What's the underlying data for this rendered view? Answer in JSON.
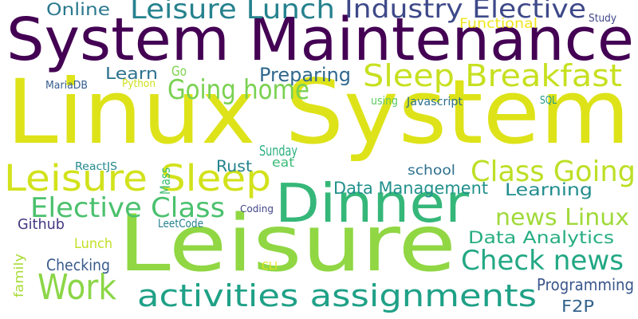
{
  "colors": {
    "background": "#ffffff",
    "purple": "#440154",
    "indigo": "#482878",
    "slate_blue": "#3e4989",
    "steel_blue": "#31688e",
    "teal": "#26828e",
    "sea_green": "#1f9e89",
    "green": "#35b779",
    "light_green": "#6ece58",
    "lime": "#b5de2b",
    "yellow": "#dde318"
  },
  "words": [
    {
      "id": "word-linux-system",
      "text": "Linux System",
      "color": "#dde318"
    },
    {
      "id": "word-system-maintenance",
      "text": "System Maintenance",
      "color": "#440154"
    },
    {
      "id": "word-leisure-large",
      "text": "Leisure",
      "color": "#90d743"
    },
    {
      "id": "word-dinner",
      "text": "Dinner",
      "color": "#35b779"
    },
    {
      "id": "word-leisure-lunch",
      "text": "Leisure Lunch",
      "color": "#26828e"
    },
    {
      "id": "word-industry-elective",
      "text": "Industry Elective",
      "color": "#3e4989"
    },
    {
      "id": "word-sleep-breakfast",
      "text": "Sleep Breakfast",
      "color": "#c7e020"
    },
    {
      "id": "word-leisure-sleep",
      "text": "Leisure Sleep",
      "color": "#d2e21b"
    },
    {
      "id": "word-activities-assignments",
      "text": "activities assignments",
      "color": "#1fa187"
    },
    {
      "id": "word-class-going",
      "text": "Class Going",
      "color": "#bddf26"
    },
    {
      "id": "word-elective-class",
      "text": "Elective Class",
      "color": "#4ac16d"
    },
    {
      "id": "word-going-home",
      "text": "Going home",
      "color": "#7ad151"
    },
    {
      "id": "word-work",
      "text": "Work",
      "color": "#8bd646"
    },
    {
      "id": "word-check-news",
      "text": "Check news",
      "color": "#22a884"
    },
    {
      "id": "word-news-linux",
      "text": "news Linux",
      "color": "#a0da39"
    },
    {
      "id": "word-preparing",
      "text": "Preparing",
      "color": "#31688e"
    },
    {
      "id": "word-online",
      "text": "Online",
      "color": "#2a788e"
    },
    {
      "id": "word-learn",
      "text": "Learn",
      "color": "#2c728e"
    },
    {
      "id": "word-data-management",
      "text": "Data Management",
      "color": "#21918c"
    },
    {
      "id": "word-learning",
      "text": "Learning",
      "color": "#228c8d"
    },
    {
      "id": "word-data-analytics",
      "text": "Data Analytics",
      "color": "#26ad81"
    },
    {
      "id": "word-programming",
      "text": "Programming",
      "color": "#39558c"
    },
    {
      "id": "word-f2p",
      "text": "F2P",
      "color": "#33638d"
    },
    {
      "id": "word-rust",
      "text": "Rust",
      "color": "#25848e"
    },
    {
      "id": "word-sunday",
      "text": "Sunday",
      "color": "#2ab07f"
    },
    {
      "id": "word-eat",
      "text": "eat",
      "color": "#3bbb75"
    },
    {
      "id": "word-school",
      "text": "school",
      "color": "#2d708e"
    },
    {
      "id": "word-checking",
      "text": "Checking",
      "color": "#38598c"
    },
    {
      "id": "word-github",
      "text": "Github",
      "color": "#453781"
    },
    {
      "id": "word-lunch",
      "text": "Lunch",
      "color": "#c2df23"
    },
    {
      "id": "word-go",
      "text": "Go",
      "color": "#7fd34e"
    },
    {
      "id": "word-functional",
      "text": "Functional",
      "color": "#f1e51d"
    },
    {
      "id": "word-study",
      "text": "Study",
      "color": "#3f4788"
    },
    {
      "id": "word-python",
      "text": "Python",
      "color": "#d0e11c"
    },
    {
      "id": "word-mariadb",
      "text": "MariaDB",
      "color": "#365c8d"
    },
    {
      "id": "word-using",
      "text": "using",
      "color": "#5ec962"
    },
    {
      "id": "word-javascript",
      "text": "Javascript",
      "color": "#2d708e"
    },
    {
      "id": "word-sql",
      "text": "SQL",
      "color": "#1f9a8a"
    },
    {
      "id": "word-reactjs",
      "text": "ReactJS",
      "color": "#23898e"
    },
    {
      "id": "word-mass",
      "text": "Mass",
      "color": "#3dbc74"
    },
    {
      "id": "word-coding",
      "text": "Coding",
      "color": "#404688"
    },
    {
      "id": "word-leetcode",
      "text": "LeetCode",
      "color": "#26818e"
    },
    {
      "id": "word-family",
      "text": "family",
      "color": "#a8db34"
    },
    {
      "id": "word-cli",
      "text": "CLI",
      "color": "#e5e419"
    }
  ]
}
